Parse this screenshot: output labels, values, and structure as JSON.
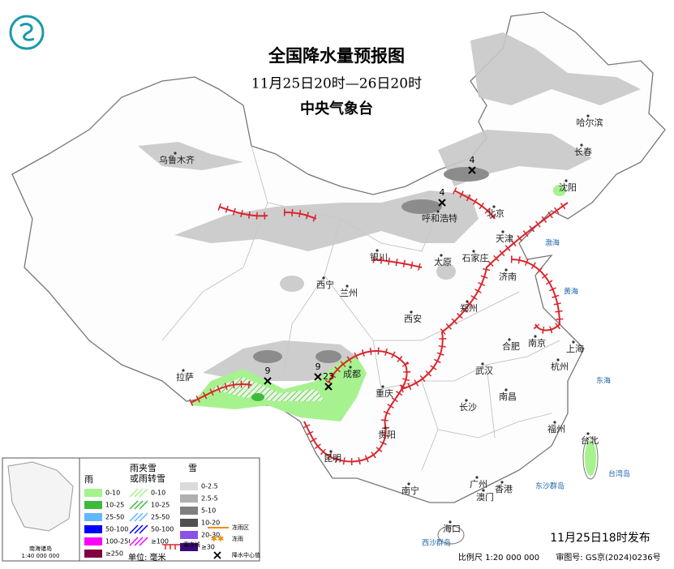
{
  "header": {
    "title": "全国降水量预报图",
    "subtitle": "11月25日20时—26日20时",
    "agency": "中央气象台"
  },
  "cities": [
    "乌鲁木齐",
    "哈尔滨",
    "长春",
    "沈阳",
    "北京",
    "天津",
    "呼和浩特",
    "石家庄",
    "太原",
    "银川",
    "济南",
    "西宁",
    "兰州",
    "郑州",
    "西安",
    "合肥",
    "南京",
    "上海",
    "拉萨",
    "成都",
    "武汉",
    "杭州",
    "重庆",
    "南昌",
    "长沙",
    "贵阳",
    "福州",
    "台北",
    "昆明",
    "南宁",
    "广州",
    "澳门",
    "香港",
    "海口"
  ],
  "seas": [
    "渤海",
    "黄海",
    "东海",
    "台湾岛",
    "东沙群岛",
    "西沙群岛",
    "南海诸岛"
  ],
  "centers": [
    4,
    4,
    9,
    9,
    23
  ],
  "legend": {
    "rain": {
      "title": "雨",
      "items": [
        "0-10",
        "10-25",
        "25-50",
        "50-100",
        "100-250",
        "≥250"
      ]
    },
    "sleet": {
      "title": [
        "雨夹雪",
        "或雨转雪"
      ],
      "items": [
        "0-10",
        "10-25",
        "25-50",
        "50-100",
        "≥100"
      ]
    },
    "snow": {
      "title": "雪",
      "items": [
        "0-2.5",
        "2.5-5",
        "5-10",
        "10-20",
        "20-30",
        "≥30"
      ]
    },
    "unit": "单位: 毫米",
    "symbols": [
      "冻雨区",
      "冻雨",
      "霜冻线",
      "降水中心值"
    ]
  },
  "inset": {
    "title": "南海诸岛",
    "scale": "1:40 000 000"
  },
  "footer": {
    "issued": "11月25日18时发布",
    "scale": "比例尺 1:20 000 000",
    "approval": "审图号: GS京(2024)0236号"
  }
}
